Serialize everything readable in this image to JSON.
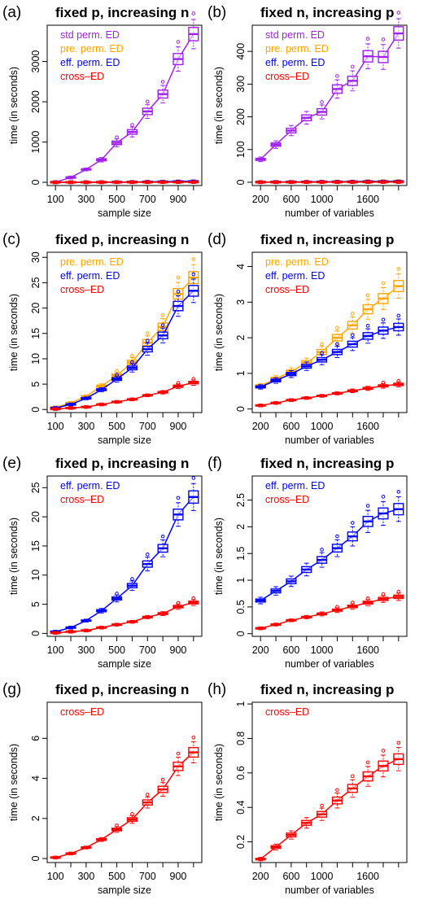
{
  "chart_data": [
    {
      "type": "box",
      "tag": "(a)",
      "title": "fixed p, increasing n",
      "xlabel": "sample size",
      "ylabel": "time (in seconds)",
      "x": [
        100,
        200,
        300,
        400,
        500,
        600,
        700,
        800,
        900,
        1000
      ],
      "xticks": [
        "100",
        "300",
        "500",
        "700",
        "900"
      ],
      "yticks": [
        0,
        1000,
        2000,
        3000
      ],
      "ylim": [
        -80,
        3900
      ],
      "series": [
        {
          "name": "std perm. ED",
          "color": "#a020f0",
          "values": [
            5,
            120,
            320,
            560,
            980,
            1250,
            1760,
            2190,
            3060,
            3680
          ]
        },
        {
          "name": "pre. perm. ED",
          "color": "#ffa500",
          "values": [
            1,
            2,
            3,
            4,
            6,
            8,
            10,
            13,
            18,
            22
          ]
        },
        {
          "name": "eff. perm. ED",
          "color": "#0000ff",
          "values": [
            0.5,
            1,
            2,
            4,
            6,
            8,
            12,
            15,
            20,
            23
          ]
        },
        {
          "name": "cross–ED",
          "color": "#ff0000",
          "values": [
            0.1,
            0.3,
            0.5,
            1,
            1.5,
            2,
            2.8,
            3.4,
            4.6,
            5.3
          ]
        }
      ]
    },
    {
      "type": "box",
      "tag": "(b)",
      "title": "fixed n, increasing p",
      "xlabel": "number of variables",
      "ylabel": "time (in seconds)",
      "x": [
        200,
        400,
        600,
        800,
        1000,
        1200,
        1400,
        1600,
        1800,
        2000
      ],
      "xticks": [
        "200",
        "600",
        "1000",
        "1600"
      ],
      "xtick_positions": [
        200,
        600,
        1000,
        1600
      ],
      "yticks": [
        0,
        100,
        200,
        300,
        400
      ],
      "ylim": [
        -10,
        480
      ],
      "series": [
        {
          "name": "std perm. ED",
          "color": "#a020f0",
          "values": [
            70,
            115,
            158,
            197,
            215,
            285,
            310,
            385,
            383,
            455
          ]
        },
        {
          "name": "pre. perm. ED",
          "color": "#ffa500",
          "values": [
            0.6,
            0.8,
            1.0,
            1.3,
            1.6,
            2.0,
            2.3,
            2.8,
            3.1,
            3.4
          ]
        },
        {
          "name": "eff. perm. ED",
          "color": "#0000ff",
          "values": [
            0.6,
            0.8,
            1.0,
            1.2,
            1.4,
            1.6,
            1.8,
            2.1,
            2.2,
            2.3
          ]
        },
        {
          "name": "cross–ED",
          "color": "#ff0000",
          "values": [
            0.1,
            0.17,
            0.25,
            0.31,
            0.37,
            0.44,
            0.51,
            0.58,
            0.65,
            0.69
          ]
        }
      ]
    },
    {
      "type": "box",
      "tag": "(c)",
      "title": "fixed p, increasing n",
      "xlabel": "sample size",
      "ylabel": "time (in seconds)",
      "x": [
        100,
        200,
        300,
        400,
        500,
        600,
        700,
        800,
        900,
        1000
      ],
      "xticks": [
        "100",
        "300",
        "500",
        "700",
        "900"
      ],
      "yticks": [
        0,
        5,
        10,
        15,
        20,
        25,
        30
      ],
      "ylim": [
        -0.6,
        31
      ],
      "series": [
        {
          "name": "pre. perm. ED",
          "color": "#ffa500",
          "values": [
            0.4,
            1.3,
            2.6,
            4.6,
            6.7,
            9.3,
            13.2,
            16.3,
            22.8,
            26.0
          ]
        },
        {
          "name": "eff. perm. ED",
          "color": "#0000ff",
          "values": [
            0.3,
            1.0,
            2.2,
            3.9,
            6.0,
            8.2,
            11.9,
            14.6,
            20.4,
            23.4
          ]
        },
        {
          "name": "cross–ED",
          "color": "#ff0000",
          "values": [
            0.1,
            0.3,
            0.5,
            1.0,
            1.5,
            2.0,
            2.8,
            3.4,
            4.6,
            5.3
          ]
        }
      ]
    },
    {
      "type": "box",
      "tag": "(d)",
      "title": "fixed n, increasing p",
      "xlabel": "number of variables",
      "ylabel": "time (in seconds)",
      "x": [
        200,
        400,
        600,
        800,
        1000,
        1200,
        1400,
        1600,
        1800,
        2000
      ],
      "xticks": [
        "200",
        "600",
        "1000",
        "1600"
      ],
      "xtick_positions": [
        200,
        600,
        1000,
        1600
      ],
      "yticks": [
        0,
        1,
        2,
        3,
        4
      ],
      "ylim": [
        -0.1,
        4.4
      ],
      "series": [
        {
          "name": "pre. perm. ED",
          "color": "#ffa500",
          "values": [
            0.65,
            0.85,
            1.05,
            1.3,
            1.6,
            2.0,
            2.35,
            2.8,
            3.1,
            3.45
          ]
        },
        {
          "name": "eff. perm. ED",
          "color": "#0000ff",
          "values": [
            0.62,
            0.8,
            0.98,
            1.2,
            1.38,
            1.6,
            1.82,
            2.05,
            2.2,
            2.3
          ]
        },
        {
          "name": "cross–ED",
          "color": "#ff0000",
          "values": [
            0.1,
            0.17,
            0.25,
            0.31,
            0.37,
            0.44,
            0.51,
            0.58,
            0.65,
            0.69
          ]
        }
      ]
    },
    {
      "type": "box",
      "tag": "(e)",
      "title": "fixed p, increasing n",
      "xlabel": "sample size",
      "ylabel": "time (in seconds)",
      "x": [
        100,
        200,
        300,
        400,
        500,
        600,
        700,
        800,
        900,
        1000
      ],
      "xticks": [
        "100",
        "300",
        "500",
        "700",
        "900"
      ],
      "yticks": [
        0,
        5,
        10,
        15,
        20,
        25
      ],
      "ylim": [
        -0.5,
        27
      ],
      "series": [
        {
          "name": "eff. perm. ED",
          "color": "#0000ff",
          "values": [
            0.3,
            1.0,
            2.2,
            3.9,
            6.0,
            8.2,
            11.9,
            14.6,
            20.4,
            23.4
          ]
        },
        {
          "name": "cross–ED",
          "color": "#ff0000",
          "values": [
            0.1,
            0.3,
            0.5,
            1.0,
            1.5,
            2.0,
            2.8,
            3.4,
            4.6,
            5.3
          ]
        }
      ]
    },
    {
      "type": "box",
      "tag": "(f)",
      "title": "fixed n, increasing p",
      "xlabel": "number of variables",
      "ylabel": "time (in seconds)",
      "x": [
        200,
        400,
        600,
        800,
        1000,
        1200,
        1400,
        1600,
        1800,
        2000
      ],
      "xticks": [
        "200",
        "600",
        "1000",
        "1600"
      ],
      "xtick_positions": [
        200,
        600,
        1000,
        1600
      ],
      "yticks": [
        0.0,
        0.5,
        1.0,
        1.5,
        2.0,
        2.5
      ],
      "ylim": [
        -0.05,
        2.95
      ],
      "series": [
        {
          "name": "eff. perm. ED",
          "color": "#0000ff",
          "values": [
            0.62,
            0.8,
            0.98,
            1.2,
            1.38,
            1.6,
            1.82,
            2.1,
            2.25,
            2.33
          ]
        },
        {
          "name": "cross–ED",
          "color": "#ff0000",
          "values": [
            0.1,
            0.17,
            0.25,
            0.31,
            0.37,
            0.44,
            0.51,
            0.58,
            0.65,
            0.69
          ]
        }
      ]
    },
    {
      "type": "box",
      "tag": "(g)",
      "title": "fixed p, increasing n",
      "xlabel": "sample size",
      "ylabel": "time (in seconds)",
      "x": [
        100,
        200,
        300,
        400,
        500,
        600,
        700,
        800,
        900,
        1000
      ],
      "xticks": [
        "100",
        "300",
        "500",
        "700",
        "900"
      ],
      "yticks": [
        0,
        2,
        4,
        6
      ],
      "ylim": [
        -0.2,
        7.8
      ],
      "series": [
        {
          "name": "cross–ED",
          "color": "#ff0000",
          "values": [
            0.05,
            0.25,
            0.55,
            0.95,
            1.45,
            1.95,
            2.8,
            3.45,
            4.6,
            5.3
          ]
        }
      ]
    },
    {
      "type": "box",
      "tag": "(h)",
      "title": "fixed n, increasing p",
      "xlabel": "number of variables",
      "ylabel": "time (in seconds)",
      "x": [
        200,
        400,
        600,
        800,
        1000,
        1200,
        1400,
        1600,
        1800,
        2000
      ],
      "xticks": [
        "200",
        "600",
        "1000",
        "1600"
      ],
      "xtick_positions": [
        200,
        600,
        1000,
        1600
      ],
      "yticks": [
        0.2,
        0.4,
        0.6,
        0.8,
        1.0
      ],
      "ylim": [
        0.08,
        1.01
      ],
      "series": [
        {
          "name": "cross–ED",
          "color": "#ff0000",
          "values": [
            0.1,
            0.17,
            0.24,
            0.31,
            0.36,
            0.44,
            0.51,
            0.58,
            0.64,
            0.68
          ]
        }
      ]
    }
  ]
}
